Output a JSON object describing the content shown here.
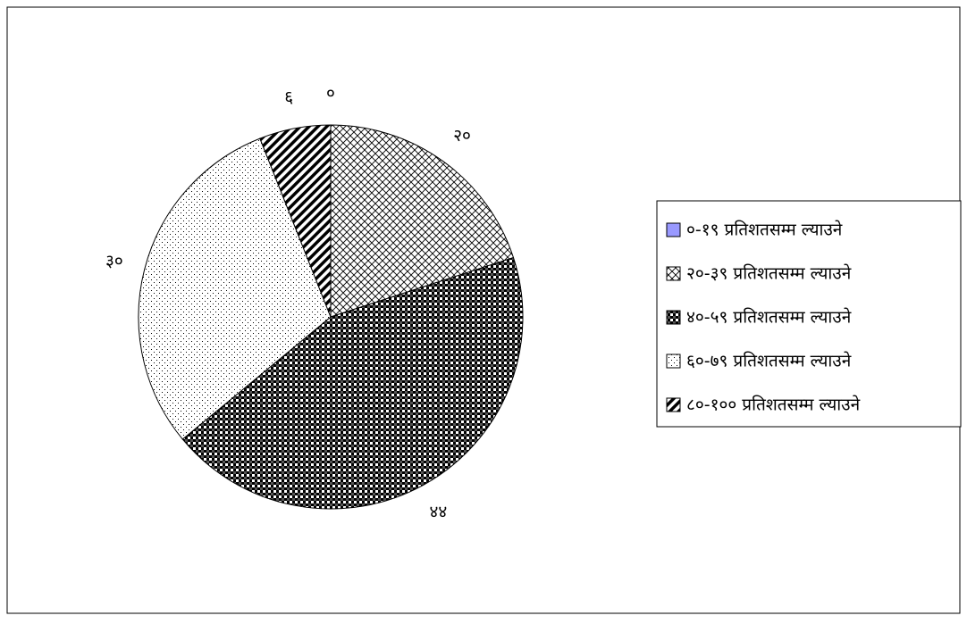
{
  "chart_data": {
    "type": "pie",
    "categories": [
      "०-१९ प्रतिशतसम्म ल्याउने",
      "२०-३९ प्रतिशतसम्म ल्याउने",
      "४०-५९ प्रतिशतसम्म ल्याउने",
      "६०-७९ प्रतिशतसम्म ल्याउने",
      "८०-१०० प्रतिशतसम्म ल्याउने"
    ],
    "values": [
      0,
      20,
      44,
      30,
      6
    ],
    "value_labels": [
      "०",
      "२०",
      "४४",
      "३०",
      "६"
    ],
    "colors": [
      "#9999ff",
      "#000000",
      "#000000",
      "#000000",
      "#000000"
    ],
    "patterns": [
      "solid",
      "diagonal-cross",
      "checker",
      "dots",
      "stripes"
    ],
    "legend": "right"
  }
}
